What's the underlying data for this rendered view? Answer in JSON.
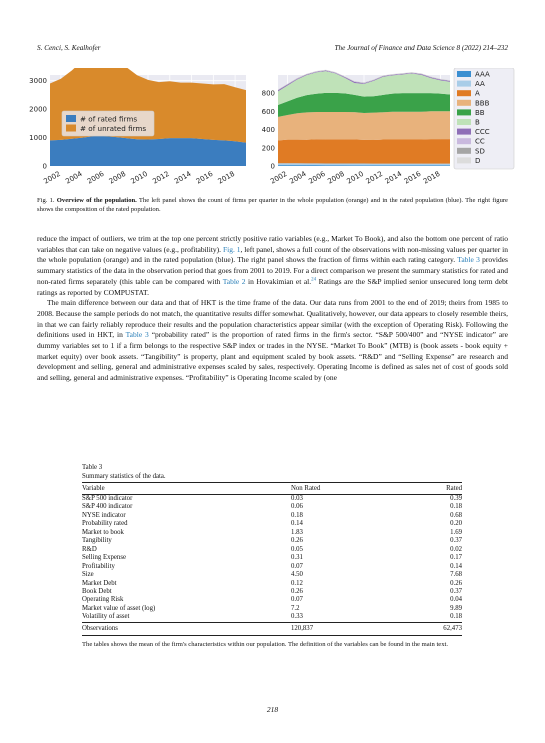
{
  "header": {
    "authors": "S. Cenci, S. Kealhofer",
    "journal": "The Journal of Finance and Data Science 8 (2022) 214–232"
  },
  "chart_data": [
    {
      "type": "area",
      "x": [
        2001,
        2002,
        2003,
        2004,
        2005,
        2006,
        2007,
        2008,
        2009,
        2010,
        2011,
        2012,
        2013,
        2014,
        2015,
        2016,
        2017,
        2018,
        2019
      ],
      "xticks": [
        "2002",
        "2004",
        "2006",
        "2008",
        "2010",
        "2012",
        "2014",
        "2016",
        "2018"
      ],
      "yticks": [
        "0",
        "1000",
        "2000",
        "3000"
      ],
      "ylim": [
        0,
        3200
      ],
      "legend_position": "center-left",
      "series": [
        {
          "name": "# of rated firms",
          "color": "#3b7dbf",
          "values": [
            900,
            920,
            960,
            1000,
            1050,
            1050,
            1020,
            980,
            940,
            930,
            950,
            980,
            980,
            980,
            950,
            920,
            900,
            870,
            820
          ]
        },
        {
          "name": "# of unrated firms",
          "color": "#d98a2b",
          "values": [
            2000,
            2150,
            2400,
            2700,
            2850,
            2900,
            2750,
            2500,
            2250,
            2100,
            2000,
            2000,
            1950,
            1950,
            1950,
            1950,
            1980,
            1900,
            1850
          ]
        }
      ]
    },
    {
      "type": "area",
      "x": [
        2001,
        2002,
        2003,
        2004,
        2005,
        2006,
        2007,
        2008,
        2009,
        2010,
        2011,
        2012,
        2013,
        2014,
        2015,
        2016,
        2017,
        2018,
        2019
      ],
      "xticks": [
        "2002",
        "2004",
        "2006",
        "2008",
        "2010",
        "2012",
        "2014",
        "2016",
        "2018"
      ],
      "yticks": [
        "0",
        "200",
        "400",
        "600",
        "800"
      ],
      "ylim": [
        0,
        1000
      ],
      "legend_position": "outside-right",
      "series": [
        {
          "name": "AAA",
          "color": "#3b8fd1",
          "values": [
            10,
            10,
            10,
            9,
            9,
            8,
            8,
            8,
            7,
            7,
            6,
            6,
            6,
            6,
            6,
            6,
            6,
            6,
            6
          ]
        },
        {
          "name": "AA",
          "color": "#a9cde8",
          "values": [
            20,
            20,
            20,
            20,
            20,
            20,
            20,
            20,
            20,
            20,
            20,
            20,
            20,
            20,
            20,
            20,
            20,
            20,
            20
          ]
        },
        {
          "name": "A",
          "color": "#e07b24",
          "values": [
            250,
            260,
            260,
            260,
            265,
            265,
            265,
            265,
            265,
            260,
            260,
            265,
            265,
            265,
            265,
            265,
            270,
            270,
            270
          ]
        },
        {
          "name": "BBB",
          "color": "#e8b27c",
          "values": [
            260,
            270,
            290,
            300,
            300,
            300,
            300,
            300,
            300,
            295,
            300,
            300,
            305,
            305,
            305,
            305,
            305,
            305,
            305
          ]
        },
        {
          "name": "BB",
          "color": "#3aa249",
          "values": [
            130,
            150,
            170,
            190,
            200,
            210,
            210,
            205,
            190,
            180,
            180,
            190,
            200,
            205,
            205,
            205,
            200,
            195,
            185
          ]
        },
        {
          "name": "B",
          "color": "#bfe2b8",
          "values": [
            150,
            175,
            200,
            220,
            235,
            240,
            215,
            170,
            130,
            140,
            170,
            200,
            200,
            205,
            215,
            200,
            165,
            145,
            140
          ]
        },
        {
          "name": "CCC",
          "color": "#8f6fb7",
          "values": [
            12,
            10,
            8,
            6,
            6,
            6,
            6,
            8,
            12,
            8,
            6,
            6,
            6,
            6,
            6,
            8,
            8,
            8,
            8
          ]
        },
        {
          "name": "CC",
          "color": "#c9b9de",
          "values": [
            3,
            3,
            3,
            3,
            3,
            3,
            3,
            3,
            3,
            3,
            3,
            3,
            3,
            3,
            3,
            3,
            3,
            3,
            3
          ]
        },
        {
          "name": "SD",
          "color": "#a5a5a5",
          "values": [
            3,
            3,
            3,
            3,
            3,
            3,
            3,
            3,
            3,
            3,
            3,
            3,
            3,
            3,
            3,
            3,
            3,
            3,
            3
          ]
        },
        {
          "name": "D",
          "color": "#dcdcdc",
          "values": [
            3,
            3,
            3,
            3,
            3,
            3,
            3,
            3,
            3,
            3,
            3,
            3,
            3,
            3,
            3,
            3,
            3,
            3,
            3
          ]
        }
      ]
    }
  ],
  "caption": {
    "label": "Fig. 1.",
    "bold": "Overview of the population.",
    "text": " The left panel shows the count of firms per quarter in the whole population (orange) and in the rated population (blue). The right figure shows the composition of the rated population."
  },
  "body": {
    "p1": [
      "reduce the impact of outliers, we trim at the top one percent strictly positive ratio variables (e.g., Market To Book), and also the bottom one percent of ratio variables that can take on negative values (e.g., profitability). ",
      "Fig. 1",
      ", left panel, shows a full count of the observations with non-missing values per quarter in the whole population (orange) and in the rated population (blue). The right panel shows the fraction of firms within each rating category. ",
      "Table 3",
      " provides summary statistics of the data in the observation period that goes from 2001 to 2019. For a direct comparison we present the summary statistics for rated and non-rated firms separately (this table can be compared with ",
      "Table 2",
      " in Hovakimian et al.",
      "24",
      " Ratings are the S&P implied senior unsecured long term debt ratings as reported by COMPUSTAT."
    ],
    "p2": [
      "The main difference between our data and that of HKT is the time frame of the data. Our data runs from 2001 to the end of 2019; theirs from 1985 to 2008. Because the sample periods do not match, the quantitative results differ somewhat. Qualitatively, however, our data appears to closely resemble theirs, in that we can fairly reliably reproduce their results and the population characteristics appear similar (with the exception of Operating Risk). Following the definitions used in HKT, in ",
      "Table 3",
      " “probability rated” is the proportion of rated firms in the firm's sector. “S&P 500/400” and “NYSE indicator” are dummy variables set to 1 if a firm belongs to the respective S&P index or trades in the NYSE. “Market To Book” (MTB) is (book assets - book equity + market equity) over book assets. “Tangibility” is property, plant and equipment scaled by book assets. “R&D” and “Selling Expense” are research and development and selling, general and administrative expenses scaled by sales, respectively. Operating Income is defined as sales net of cost of goods sold and selling, general and administrative expenses. “Profitability” is Operating Income scaled by (one"
    ]
  },
  "table": {
    "label": "Table 3",
    "title": "Summary statistics of the data.",
    "headers": [
      "Variable",
      "Non Rated",
      "Rated"
    ],
    "rows": [
      [
        "S&P 500 indicator",
        "0.03",
        "0.39"
      ],
      [
        "S&P 400 indicator",
        "0.06",
        "0.18"
      ],
      [
        "NYSE indicator",
        "0.18",
        "0.68"
      ],
      [
        "Probability rated",
        "0.14",
        "0.20"
      ],
      [
        "Market to book",
        "1.83",
        "1.69"
      ],
      [
        "Tangibility",
        "0.26",
        "0.37"
      ],
      [
        "R&D",
        "0.05",
        "0.02"
      ],
      [
        "Selling Expense",
        "0.31",
        "0.17"
      ],
      [
        "Profitability",
        "0.07",
        "0.14"
      ],
      [
        "Size",
        "4.50",
        "7.68"
      ],
      [
        "Market Debt",
        "0.12",
        "0.26"
      ],
      [
        "Book Debt",
        "0.26",
        "0.37"
      ],
      [
        "Operating Risk",
        "0.07",
        "0.04"
      ],
      [
        "Market value of asset (log)",
        "7.2",
        "9.89"
      ],
      [
        "Volatility of asset",
        "0.33",
        "0.18"
      ]
    ],
    "observations": [
      "Observations",
      "120,837",
      "62,473"
    ],
    "note": "The tables shows the mean of the firm's characteristics within our population. The definition of the variables can be found in the main text."
  },
  "page_number": "218"
}
